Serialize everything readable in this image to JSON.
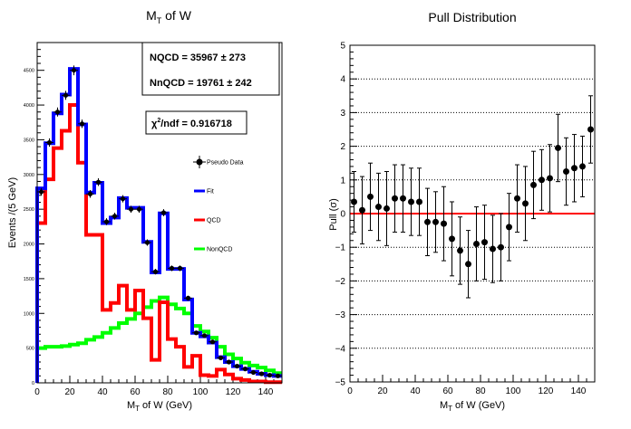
{
  "chart_data": [
    {
      "type": "bar",
      "title_main": "M",
      "title_sub": "T",
      "title_rest": " of W",
      "xlabel_main": "M",
      "xlabel_sub": "T",
      "xlabel_rest": " of W (GeV)",
      "ylabel": "Events /(5 GeV)",
      "xlim": [
        0,
        150
      ],
      "ylim": [
        0,
        4900
      ],
      "bin_width": 5,
      "xticks": [
        0,
        20,
        40,
        60,
        80,
        100,
        120,
        140
      ],
      "xtick_labels": [
        "0",
        "20",
        "40",
        "60",
        "80",
        "100",
        "120",
        "140"
      ],
      "yticks": [
        0,
        500,
        1000,
        1500,
        2000,
        2500,
        3000,
        3500,
        4000,
        4500
      ],
      "ytick_labels": [
        "0",
        "500",
        "1000",
        "1500",
        "2000",
        "2500",
        "3000",
        "3500",
        "4000",
        "4500"
      ],
      "colors": {
        "data": "#000000",
        "fit": "#0000ff",
        "qcd": "#ff0000",
        "nonqcd": "#00ff00"
      },
      "bin_centers": [
        2.5,
        7.5,
        12.5,
        17.5,
        22.5,
        27.5,
        32.5,
        37.5,
        42.5,
        47.5,
        52.5,
        57.5,
        62.5,
        67.5,
        72.5,
        77.5,
        82.5,
        87.5,
        92.5,
        97.5,
        102.5,
        107.5,
        112.5,
        117.5,
        122.5,
        127.5,
        132.5,
        137.5,
        142.5,
        147.5
      ],
      "series": [
        {
          "name": "Pseudo Data",
          "values": [
            2750,
            3460,
            3900,
            4140,
            4500,
            3730,
            2720,
            2890,
            2320,
            2400,
            2650,
            2500,
            2500,
            2020,
            1600,
            2450,
            1650,
            1650,
            1220,
            720,
            680,
            590,
            360,
            300,
            240,
            200,
            150,
            130,
            110,
            100
          ],
          "errors": [
            55,
            60,
            65,
            65,
            70,
            60,
            55,
            55,
            50,
            50,
            52,
            50,
            50,
            45,
            40,
            50,
            40,
            40,
            35,
            28,
            27,
            25,
            20,
            18,
            16,
            15,
            13,
            12,
            11,
            10
          ]
        },
        {
          "name": "Fit",
          "values": [
            2800,
            3450,
            3880,
            4150,
            4520,
            3720,
            2740,
            2880,
            2300,
            2380,
            2660,
            2520,
            2520,
            2030,
            1590,
            2440,
            1640,
            1640,
            1200,
            720,
            670,
            580,
            370,
            300,
            240,
            200,
            160,
            130,
            110,
            100
          ]
        },
        {
          "name": "QCD",
          "values": [
            2300,
            2930,
            3380,
            3630,
            4000,
            3170,
            2130,
            2130,
            1050,
            1150,
            1400,
            1050,
            1330,
            930,
            330,
            1160,
            630,
            520,
            230,
            390,
            110,
            100,
            190,
            120,
            60,
            40,
            20,
            20,
            10,
            10
          ]
        },
        {
          "name": "NonQCD",
          "values": [
            500,
            520,
            520,
            530,
            550,
            570,
            620,
            660,
            720,
            790,
            860,
            920,
            1000,
            1090,
            1180,
            1230,
            1130,
            1070,
            1000,
            820,
            740,
            650,
            520,
            410,
            350,
            290,
            250,
            220,
            180,
            140
          ]
        }
      ],
      "stats_box": {
        "nqcd": "NQCD =  35967 ± 273",
        "nnqcd": "NnQCD =  19761 ± 242"
      },
      "chi2": {
        "chi": "χ",
        "sup": "2",
        "rest": "/ndf = 0.916718"
      },
      "legend": {
        "placement": "right",
        "entries": [
          {
            "label": "Pseudo Data",
            "color": "#000000",
            "kind": "marker"
          },
          {
            "label": "Fit",
            "color": "#0000ff",
            "kind": "line"
          },
          {
            "label": "QCD",
            "color": "#ff0000",
            "kind": "line"
          },
          {
            "label": "NonQCD",
            "color": "#00ff00",
            "kind": "line"
          }
        ]
      }
    },
    {
      "type": "scatter",
      "title": "Pull Distribution",
      "xlabel_main": "M",
      "xlabel_sub": "T",
      "xlabel_rest": " of W (GeV)",
      "ylabel": "Pull (σ)",
      "xlim": [
        0,
        150
      ],
      "ylim": [
        -5,
        5
      ],
      "grid": "horizontal dotted",
      "zero_line_color": "#ff0000",
      "xticks": [
        0,
        20,
        40,
        60,
        80,
        100,
        120,
        140
      ],
      "xtick_labels": [
        "0",
        "20",
        "40",
        "60",
        "80",
        "100",
        "120",
        "140"
      ],
      "yticks": [
        -5,
        -4,
        -3,
        -2,
        -1,
        0,
        1,
        2,
        3,
        4,
        5
      ],
      "ytick_labels": [
        "−5",
        "−4",
        "−3",
        "−2",
        "−1",
        "0",
        "1",
        "2",
        "3",
        "4",
        "5"
      ],
      "series": [
        {
          "name": "Pull",
          "x": [
            2.5,
            7.5,
            12.5,
            17.5,
            22.5,
            27.5,
            32.5,
            37.5,
            42.5,
            47.5,
            52.5,
            57.5,
            62.5,
            67.5,
            72.5,
            77.5,
            82.5,
            87.5,
            92.5,
            97.5,
            102.5,
            107.5,
            112.5,
            117.5,
            122.5,
            127.5,
            132.5,
            137.5,
            142.5,
            147.5
          ],
          "y": [
            0.35,
            0.1,
            0.5,
            0.2,
            0.15,
            0.45,
            0.45,
            0.35,
            0.35,
            -0.25,
            -0.25,
            -0.3,
            -0.75,
            -1.1,
            -1.5,
            -0.9,
            -0.85,
            -1.05,
            -1.0,
            -0.4,
            0.45,
            0.3,
            0.85,
            1.0,
            1.05,
            1.95,
            1.25,
            1.35,
            1.4,
            2.5
          ],
          "err": [
            0.9,
            1.0,
            1.0,
            1.0,
            1.1,
            1.0,
            1.0,
            1.0,
            1.0,
            1.0,
            0.9,
            1.1,
            1.1,
            1.0,
            1.0,
            1.1,
            1.1,
            1.0,
            1.0,
            1.0,
            1.0,
            1.1,
            1.0,
            0.9,
            1.0,
            1.0,
            1.0,
            1.0,
            0.9,
            1.0
          ]
        }
      ]
    }
  ]
}
